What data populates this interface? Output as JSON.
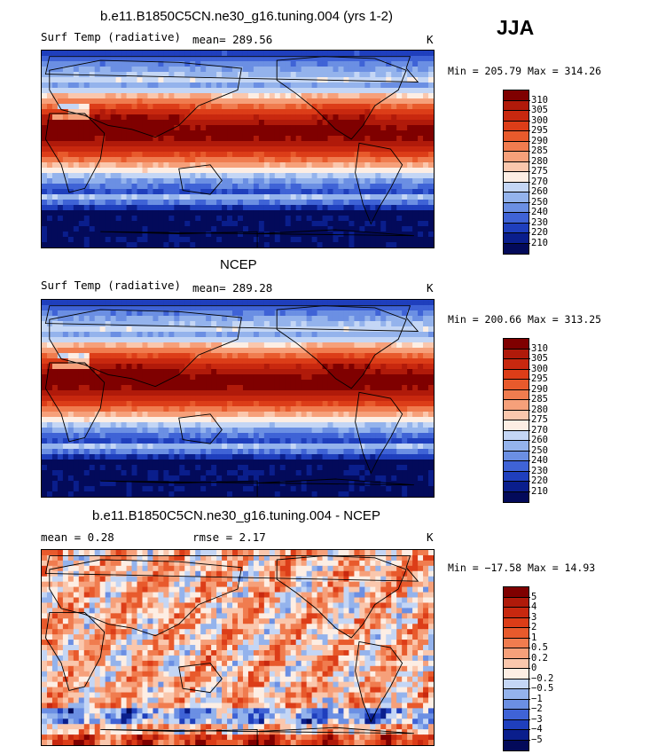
{
  "season": "JJA",
  "panels": [
    {
      "title": "b.e11.B1850C5CN.ne30_g16.tuning.004 (yrs 1-2)",
      "left_label": "Surf Temp (radiative)",
      "stat1": "mean= 289.56",
      "stat2": "",
      "units": "K",
      "minmax": "Min = 205.79 Max = 314.26",
      "palette": "temp"
    },
    {
      "title": "NCEP",
      "left_label": "Surf Temp (radiative)",
      "stat1": "mean= 289.28",
      "stat2": "",
      "units": "K",
      "minmax": "Min = 200.66 Max = 313.25",
      "palette": "temp"
    },
    {
      "title": "b.e11.B1850C5CN.ne30_g16.tuning.004 - NCEP",
      "left_label": "mean =   0.28",
      "stat1": "rmse =   2.17",
      "stat2": "",
      "units": "K",
      "minmax": "Min = −17.58 Max =  14.93",
      "palette": "diff"
    }
  ],
  "colorbars": {
    "temp": {
      "labels": [
        "310",
        "305",
        "300",
        "295",
        "290",
        "285",
        "280",
        "275",
        "270",
        "260",
        "250",
        "240",
        "230",
        "220",
        "210"
      ],
      "colors": [
        "#7f0000",
        "#b01a0a",
        "#c8280f",
        "#dc3d18",
        "#e85a2c",
        "#f07c4f",
        "#f6a07a",
        "#fac7ad",
        "#fdeee4",
        "#c4d6f5",
        "#94b3ec",
        "#6b8fe3",
        "#3f63d6",
        "#1f3fbd",
        "#0a1e8c",
        "#030a5a"
      ]
    },
    "diff": {
      "labels": [
        "5",
        "4",
        "3",
        "2",
        "1",
        "0.5",
        "0.2",
        "0",
        "−0.2",
        "−0.5",
        "−1",
        "−2",
        "−3",
        "−4",
        "−5"
      ],
      "colors": [
        "#7f0000",
        "#b01a0a",
        "#c8280f",
        "#dc3d18",
        "#e85a2c",
        "#f07c4f",
        "#f6a07a",
        "#fac7ad",
        "#fdeee4",
        "#c4d6f5",
        "#94b3ec",
        "#6b8fe3",
        "#3f63d6",
        "#1f3fbd",
        "#0a1e8c",
        "#030a5a"
      ]
    }
  }
}
